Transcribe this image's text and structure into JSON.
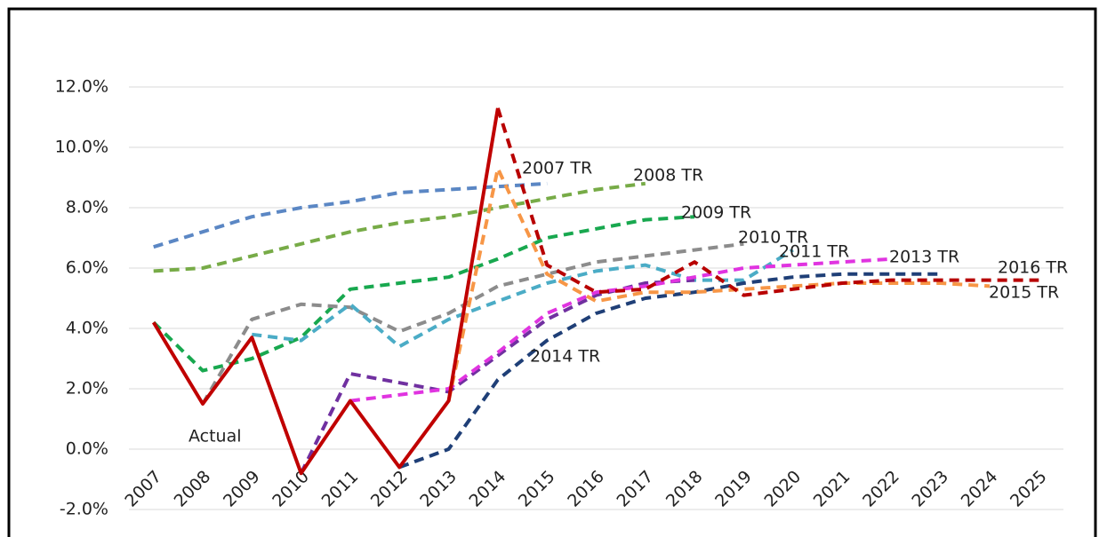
{
  "chart_data": {
    "type": "line",
    "categories": [
      "2007",
      "2008",
      "2009",
      "2010",
      "2011",
      "2012",
      "2013",
      "2014",
      "2015",
      "2016",
      "2017",
      "2018",
      "2019",
      "2020",
      "2021",
      "2022",
      "2023",
      "2024",
      "2025"
    ],
    "ylim": [
      -2,
      12
    ],
    "yticks": [
      {
        "value": -2,
        "label": "-2.0%"
      },
      {
        "value": 0,
        "label": "0.0%"
      },
      {
        "value": 2,
        "label": "2.0%"
      },
      {
        "value": 4,
        "label": "4.0%"
      },
      {
        "value": 6,
        "label": "6.0%"
      },
      {
        "value": 8,
        "label": "8.0%"
      },
      {
        "value": 10,
        "label": "10.0%"
      },
      {
        "value": 12,
        "label": "12.0%"
      }
    ],
    "grid": true,
    "series": [
      {
        "name": "2007 TR",
        "color": "#5b87c4",
        "dashed": true,
        "values": [
          6.7,
          7.2,
          7.7,
          8.0,
          8.2,
          8.5,
          8.6,
          8.7,
          8.8,
          null,
          null,
          null,
          null,
          null,
          null,
          null,
          null,
          null,
          null
        ]
      },
      {
        "name": "2008 TR",
        "color": "#77ab47",
        "dashed": true,
        "values": [
          5.9,
          6.0,
          6.4,
          6.8,
          7.2,
          7.5,
          7.7,
          8.0,
          8.3,
          8.6,
          8.8,
          null,
          null,
          null,
          null,
          null,
          null,
          null,
          null
        ]
      },
      {
        "name": "2009 TR",
        "color": "#18a84f",
        "dashed": true,
        "values": [
          4.2,
          2.6,
          3.0,
          3.7,
          5.3,
          5.5,
          5.7,
          6.3,
          7.0,
          7.3,
          7.6,
          7.7,
          null,
          null,
          null,
          null,
          null,
          null,
          null
        ]
      },
      {
        "name": "2010 TR",
        "color": "#8c8c8c",
        "dashed": true,
        "values": [
          null,
          1.5,
          4.3,
          4.8,
          4.7,
          3.9,
          4.5,
          5.4,
          5.8,
          6.2,
          6.4,
          6.6,
          6.8,
          null,
          null,
          null,
          null,
          null,
          null
        ]
      },
      {
        "name": "2011 TR",
        "color": "#4bacc6",
        "dashed": true,
        "values": [
          null,
          null,
          3.8,
          3.6,
          4.8,
          3.4,
          4.3,
          4.9,
          5.5,
          5.9,
          6.1,
          5.6,
          5.6,
          6.6,
          null,
          null,
          null,
          null,
          null
        ]
      },
      {
        "color": "#7030a0",
        "dashed": true,
        "values": [
          null,
          null,
          null,
          -0.8,
          2.5,
          2.2,
          1.9,
          3.1,
          4.3,
          5.1,
          5.5,
          5.6,
          null,
          null,
          null,
          null,
          null,
          null,
          null
        ]
      },
      {
        "name": "2013 TR",
        "color": "#e034e0",
        "dashed": true,
        "values": [
          null,
          null,
          null,
          null,
          1.6,
          1.8,
          2.0,
          3.2,
          4.5,
          5.2,
          5.4,
          5.7,
          6.0,
          6.1,
          6.2,
          6.3,
          null,
          null,
          null
        ]
      },
      {
        "name": "2014 TR",
        "color": "#1f3f77",
        "dashed": true,
        "values": [
          null,
          null,
          null,
          null,
          null,
          -0.6,
          0.0,
          2.3,
          3.6,
          4.5,
          5.0,
          5.2,
          5.5,
          5.7,
          5.8,
          5.8,
          5.8,
          null,
          null
        ]
      },
      {
        "name": "2015 TR",
        "color": "#f79646",
        "dashed": true,
        "values": [
          null,
          null,
          null,
          null,
          null,
          null,
          1.6,
          9.3,
          5.8,
          4.9,
          5.2,
          5.2,
          5.3,
          5.4,
          5.5,
          5.5,
          5.5,
          5.4,
          null
        ]
      },
      {
        "name": "2016 TR",
        "color": "#b80000",
        "dashed": true,
        "values": [
          null,
          null,
          null,
          null,
          null,
          null,
          null,
          11.3,
          6.1,
          5.2,
          5.3,
          6.2,
          5.1,
          5.3,
          5.5,
          5.6,
          5.6,
          5.6,
          5.6
        ]
      },
      {
        "name": "Actual",
        "color": "#c00000",
        "dashed": false,
        "values": [
          4.2,
          1.5,
          3.7,
          -0.8,
          1.6,
          -0.6,
          1.6,
          11.3,
          null,
          null,
          null,
          null,
          null,
          null,
          null,
          null,
          null,
          null,
          null
        ]
      }
    ]
  }
}
